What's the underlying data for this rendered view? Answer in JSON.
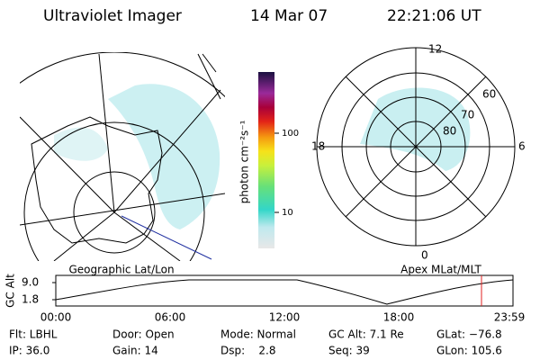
{
  "header": {
    "title": "Ultraviolet Imager",
    "date": "14 Mar 07",
    "time": "22:21:06 UT"
  },
  "geo_map": {
    "label": "Geographic Lat/Lon"
  },
  "polar_map": {
    "label": "Apex MLat/MLT",
    "mlt_labels": [
      "12",
      "18",
      "6",
      "0"
    ],
    "lat_labels": [
      "60",
      "70",
      "80"
    ]
  },
  "colorbar": {
    "label": "photon cm⁻²s⁻¹",
    "ticks": [
      "100",
      "10"
    ]
  },
  "altitude_plot": {
    "ylabel": "GC Alt",
    "yticks": [
      "9.0",
      "1.8"
    ],
    "xticks": [
      "00:00",
      "06:00",
      "12:00",
      "18:00",
      "23:59"
    ]
  },
  "footer": {
    "rows": [
      [
        "Flt: LBHL",
        "Door: Open",
        "Mode: Normal",
        "GC Alt: 7.1 Re",
        "GLat: −76.8"
      ],
      [
        "IP: 36.0",
        "Gain: 14",
        "Dsp:    2.8",
        "Seq: 39",
        "GLon: 105.6"
      ]
    ]
  }
}
